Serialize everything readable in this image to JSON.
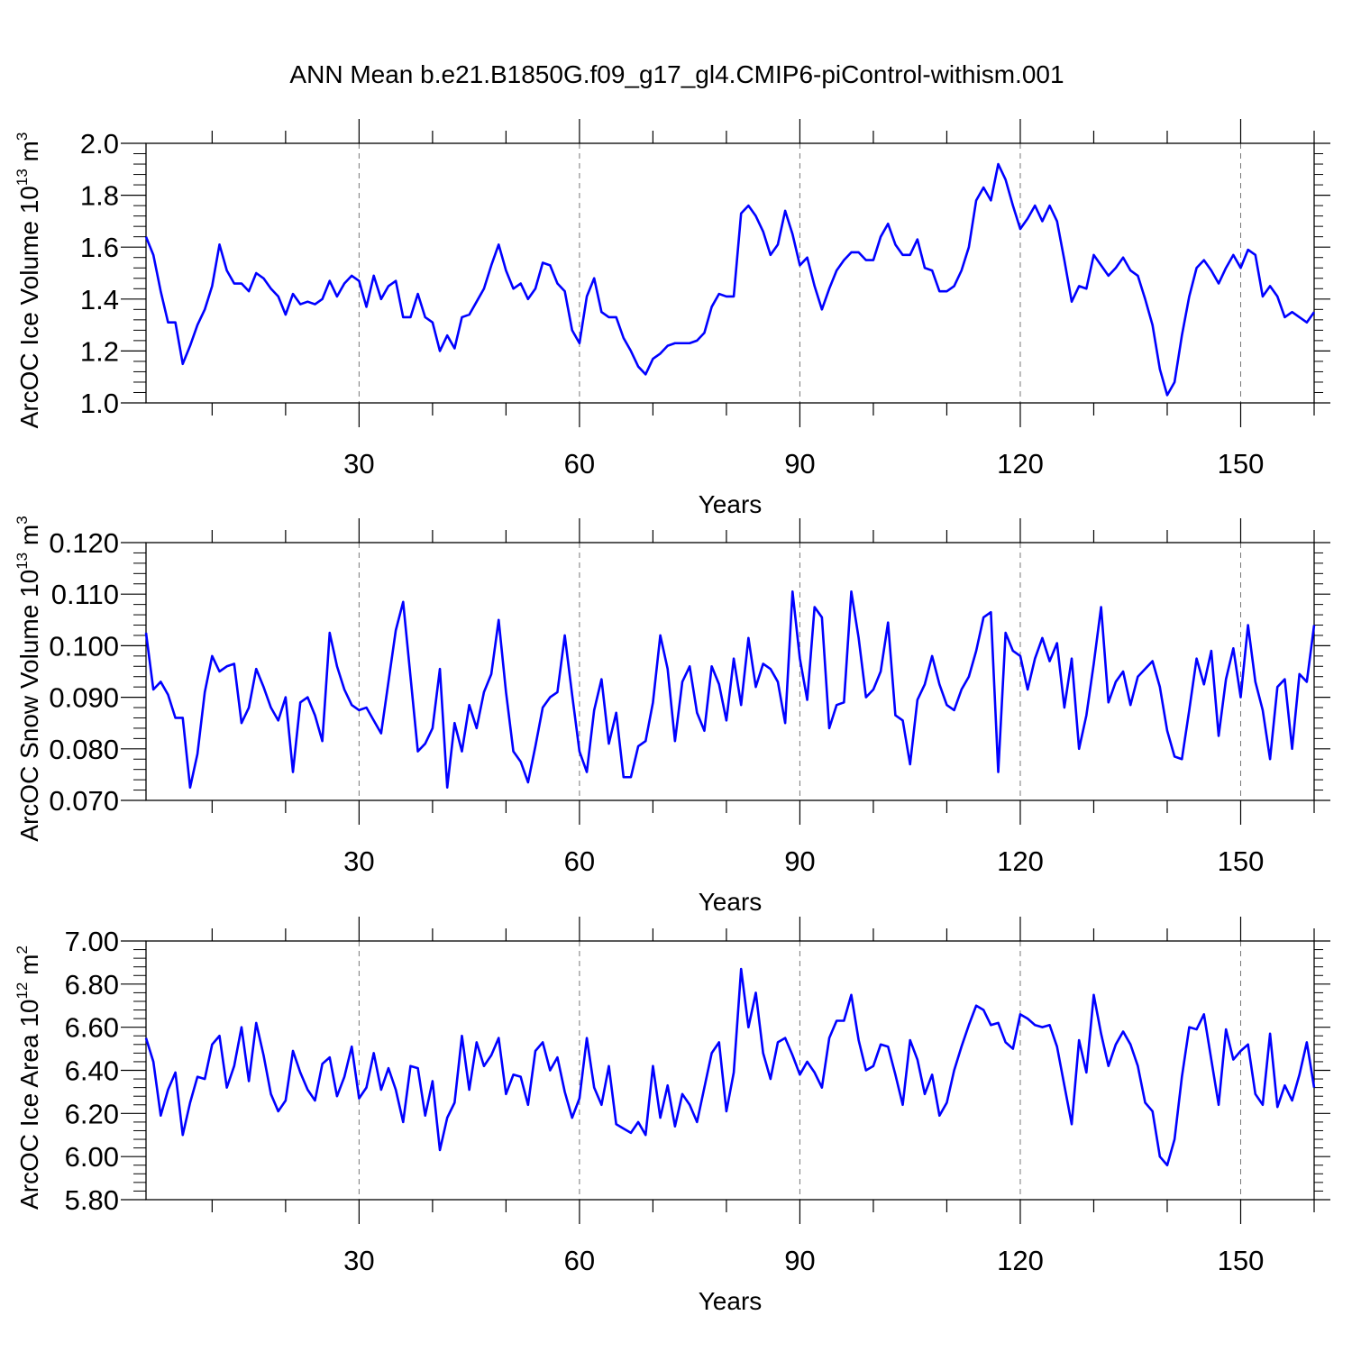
{
  "title": "ANN Mean b.e21.B1850G.f09_g17_gl4.CMIP6-piControl-withism.001",
  "line_color": "#0000ff",
  "grid_line_color": "#777777",
  "chart_data": [
    {
      "type": "line",
      "name": "ice-volume",
      "xlabel": "Years",
      "ylabel_parts": [
        "ArcOC Ice Volume 10",
        "13",
        " m",
        "3"
      ],
      "xlim": [
        1,
        160
      ],
      "ylim": [
        1.0,
        2.0
      ],
      "yticks": [
        "1.0",
        "1.2",
        "1.4",
        "1.6",
        "1.8",
        "2.0"
      ],
      "ytick_values": [
        1.0,
        1.2,
        1.4,
        1.6,
        1.8,
        2.0
      ],
      "xticks": [
        "30",
        "60",
        "90",
        "120",
        "150"
      ],
      "xtick_values": [
        30,
        60,
        90,
        120,
        150
      ],
      "grid_x": [
        30,
        60,
        90,
        120,
        150
      ],
      "values": [
        1.64,
        1.57,
        1.43,
        1.31,
        1.31,
        1.15,
        1.22,
        1.3,
        1.36,
        1.45,
        1.61,
        1.51,
        1.46,
        1.46,
        1.43,
        1.5,
        1.48,
        1.44,
        1.41,
        1.34,
        1.42,
        1.38,
        1.39,
        1.38,
        1.4,
        1.47,
        1.41,
        1.46,
        1.49,
        1.47,
        1.37,
        1.49,
        1.4,
        1.45,
        1.47,
        1.33,
        1.33,
        1.42,
        1.33,
        1.31,
        1.2,
        1.26,
        1.21,
        1.33,
        1.34,
        1.39,
        1.44,
        1.53,
        1.61,
        1.51,
        1.44,
        1.46,
        1.4,
        1.44,
        1.54,
        1.53,
        1.46,
        1.43,
        1.28,
        1.23,
        1.41,
        1.48,
        1.35,
        1.33,
        1.33,
        1.25,
        1.2,
        1.14,
        1.11,
        1.17,
        1.19,
        1.22,
        1.23,
        1.23,
        1.23,
        1.24,
        1.27,
        1.37,
        1.42,
        1.41,
        1.41,
        1.73,
        1.76,
        1.72,
        1.66,
        1.57,
        1.61,
        1.74,
        1.65,
        1.53,
        1.56,
        1.45,
        1.36,
        1.44,
        1.51,
        1.55,
        1.58,
        1.58,
        1.55,
        1.55,
        1.64,
        1.69,
        1.61,
        1.57,
        1.57,
        1.63,
        1.52,
        1.51,
        1.43,
        1.43,
        1.45,
        1.51,
        1.6,
        1.78,
        1.83,
        1.78,
        1.92,
        1.86,
        1.76,
        1.67,
        1.71,
        1.76,
        1.7,
        1.76,
        1.7,
        1.55,
        1.39,
        1.45,
        1.44,
        1.57,
        1.53,
        1.49,
        1.52,
        1.56,
        1.51,
        1.49,
        1.4,
        1.3,
        1.13,
        1.03,
        1.08,
        1.26,
        1.41,
        1.52,
        1.55,
        1.51,
        1.46,
        1.52,
        1.57,
        1.52,
        1.59,
        1.57,
        1.41,
        1.45,
        1.41,
        1.33,
        1.35,
        1.33,
        1.31,
        1.35
      ]
    },
    {
      "type": "line",
      "name": "snow-volume",
      "xlabel": "Years",
      "ylabel_parts": [
        "ArcOC Snow Volume 10",
        "13",
        " m",
        "3"
      ],
      "xlim": [
        1,
        160
      ],
      "ylim": [
        0.07,
        0.12
      ],
      "yticks": [
        "0.070",
        "0.080",
        "0.090",
        "0.100",
        "0.110",
        "0.120"
      ],
      "ytick_values": [
        0.07,
        0.08,
        0.09,
        0.1,
        0.11,
        0.12
      ],
      "xticks": [
        "30",
        "60",
        "90",
        "120",
        "150"
      ],
      "xtick_values": [
        30,
        60,
        90,
        120,
        150
      ],
      "grid_x": [
        30,
        60,
        90,
        120,
        150
      ],
      "values": [
        0.1025,
        0.0915,
        0.093,
        0.0905,
        0.086,
        0.086,
        0.0725,
        0.079,
        0.091,
        0.098,
        0.095,
        0.096,
        0.0965,
        0.085,
        0.088,
        0.0955,
        0.092,
        0.088,
        0.0855,
        0.09,
        0.0755,
        0.089,
        0.09,
        0.0865,
        0.0815,
        0.1025,
        0.096,
        0.0915,
        0.0885,
        0.0875,
        0.088,
        0.0855,
        0.083,
        0.093,
        0.103,
        0.1085,
        0.094,
        0.0795,
        0.081,
        0.084,
        0.0955,
        0.0725,
        0.085,
        0.0795,
        0.0885,
        0.084,
        0.091,
        0.0945,
        0.105,
        0.091,
        0.0795,
        0.0775,
        0.0735,
        0.0805,
        0.088,
        0.09,
        0.091,
        0.102,
        0.0905,
        0.0795,
        0.0755,
        0.0875,
        0.0935,
        0.081,
        0.087,
        0.0745,
        0.0745,
        0.0805,
        0.0815,
        0.089,
        0.102,
        0.0955,
        0.0815,
        0.093,
        0.096,
        0.087,
        0.0835,
        0.096,
        0.0925,
        0.0855,
        0.0975,
        0.0885,
        0.1015,
        0.092,
        0.0965,
        0.0955,
        0.093,
        0.085,
        0.1105,
        0.0975,
        0.0895,
        0.1075,
        0.1055,
        0.084,
        0.0885,
        0.089,
        0.1105,
        0.1015,
        0.09,
        0.0915,
        0.095,
        0.1045,
        0.0865,
        0.0855,
        0.077,
        0.0895,
        0.0925,
        0.098,
        0.0925,
        0.0885,
        0.0875,
        0.0915,
        0.094,
        0.099,
        0.1055,
        0.1065,
        0.0755,
        0.1025,
        0.099,
        0.098,
        0.0915,
        0.0975,
        0.1015,
        0.097,
        0.1005,
        0.088,
        0.0975,
        0.08,
        0.0865,
        0.0965,
        0.1075,
        0.089,
        0.093,
        0.095,
        0.0885,
        0.094,
        0.0955,
        0.097,
        0.092,
        0.0835,
        0.0785,
        0.078,
        0.0875,
        0.0975,
        0.0925,
        0.099,
        0.0825,
        0.0935,
        0.0995,
        0.09,
        0.104,
        0.093,
        0.0875,
        0.078,
        0.092,
        0.0935,
        0.08,
        0.0945,
        0.093,
        0.104
      ]
    },
    {
      "type": "line",
      "name": "ice-area",
      "xlabel": "Years",
      "ylabel_parts": [
        "ArcOC Ice Area 10",
        "12",
        " m",
        "2"
      ],
      "xlim": [
        1,
        160
      ],
      "ylim": [
        5.8,
        7.0
      ],
      "yticks": [
        "5.80",
        "6.00",
        "6.20",
        "6.40",
        "6.60",
        "6.80",
        "7.00"
      ],
      "ytick_values": [
        5.8,
        6.0,
        6.2,
        6.4,
        6.6,
        6.8,
        7.0
      ],
      "xticks": [
        "30",
        "60",
        "90",
        "120",
        "150"
      ],
      "xtick_values": [
        30,
        60,
        90,
        120,
        150
      ],
      "grid_x": [
        30,
        60,
        90,
        120,
        150
      ],
      "values": [
        6.55,
        6.44,
        6.19,
        6.31,
        6.39,
        6.1,
        6.25,
        6.37,
        6.36,
        6.52,
        6.56,
        6.32,
        6.42,
        6.6,
        6.35,
        6.62,
        6.47,
        6.29,
        6.21,
        6.26,
        6.49,
        6.39,
        6.31,
        6.26,
        6.43,
        6.46,
        6.28,
        6.37,
        6.51,
        6.27,
        6.32,
        6.48,
        6.31,
        6.41,
        6.31,
        6.16,
        6.42,
        6.41,
        6.19,
        6.35,
        6.03,
        6.18,
        6.25,
        6.56,
        6.31,
        6.53,
        6.42,
        6.47,
        6.55,
        6.29,
        6.38,
        6.37,
        6.24,
        6.49,
        6.53,
        6.4,
        6.46,
        6.3,
        6.18,
        6.27,
        6.55,
        6.32,
        6.24,
        6.42,
        6.15,
        6.13,
        6.11,
        6.16,
        6.1,
        6.42,
        6.18,
        6.33,
        6.14,
        6.29,
        6.24,
        6.16,
        6.32,
        6.48,
        6.53,
        6.21,
        6.39,
        6.87,
        6.6,
        6.76,
        6.48,
        6.36,
        6.53,
        6.55,
        6.47,
        6.38,
        6.44,
        6.39,
        6.32,
        6.55,
        6.63,
        6.63,
        6.75,
        6.54,
        6.4,
        6.42,
        6.52,
        6.51,
        6.38,
        6.24,
        6.54,
        6.45,
        6.29,
        6.38,
        6.19,
        6.25,
        6.4,
        6.51,
        6.61,
        6.7,
        6.68,
        6.61,
        6.62,
        6.53,
        6.5,
        6.66,
        6.64,
        6.61,
        6.6,
        6.61,
        6.51,
        6.33,
        6.15,
        6.54,
        6.39,
        6.75,
        6.57,
        6.42,
        6.52,
        6.58,
        6.52,
        6.42,
        6.25,
        6.21,
        6.0,
        5.96,
        6.08,
        6.37,
        6.6,
        6.59,
        6.66,
        6.45,
        6.24,
        6.59,
        6.45,
        6.49,
        6.52,
        6.29,
        6.24,
        6.57,
        6.23,
        6.33,
        6.26,
        6.38,
        6.53,
        6.32
      ]
    }
  ]
}
